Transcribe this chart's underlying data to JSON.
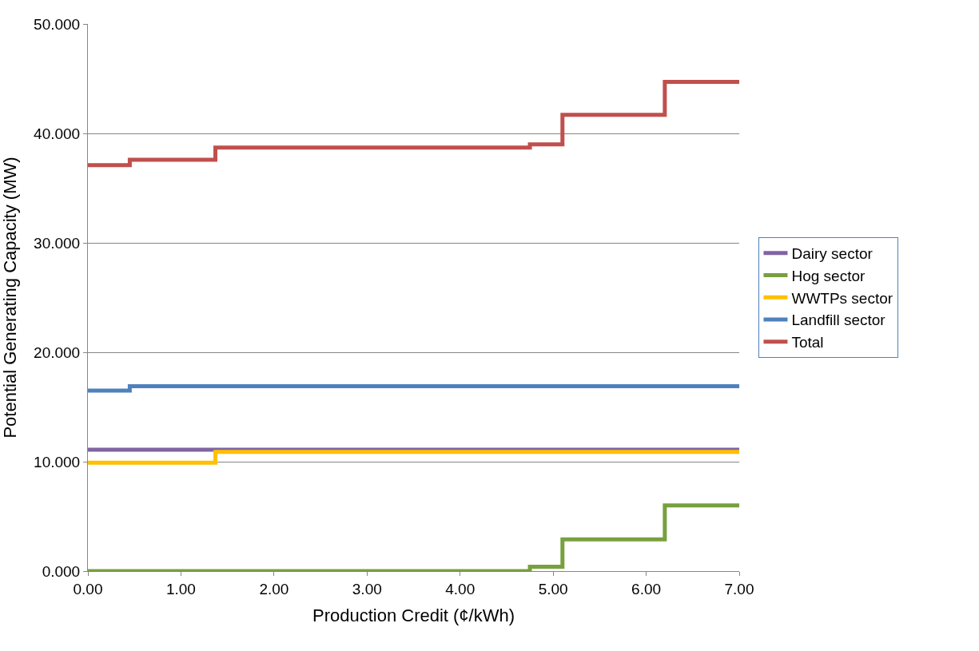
{
  "chart_data": {
    "type": "step",
    "xlabel": "Production Credit (¢/kWh)",
    "ylabel": "Potential Generating Capacity (MW)",
    "x": [
      0,
      0.45,
      1.37,
      4.75,
      5.1,
      6.2,
      7
    ],
    "series": [
      {
        "name": "Dairy sector",
        "color": "#8064a2",
        "values": [
          11.1,
          11.1,
          11.1,
          11.1,
          11.1,
          11.1,
          11.1
        ]
      },
      {
        "name": "Hog sector",
        "color": "#77a03f",
        "values": [
          0,
          0,
          0,
          0.4,
          2.9,
          6.0,
          6.0
        ]
      },
      {
        "name": "WWTPs sector",
        "color": "#ffc000",
        "values": [
          9.9,
          9.9,
          10.9,
          10.9,
          10.9,
          10.9,
          10.9
        ]
      },
      {
        "name": "Landfill sector",
        "color": "#4f81bd",
        "values": [
          16.5,
          16.9,
          16.9,
          16.9,
          16.9,
          16.9,
          16.9
        ]
      },
      {
        "name": "Total",
        "color": "#c0504d",
        "values": [
          37.1,
          37.6,
          38.7,
          39.0,
          41.7,
          44.7,
          44.7
        ]
      }
    ],
    "xlim": [
      0,
      7
    ],
    "xticks": [
      {
        "value": 0,
        "label": "0.00"
      },
      {
        "value": 1,
        "label": "1.00"
      },
      {
        "value": 2,
        "label": "2.00"
      },
      {
        "value": 3,
        "label": "3.00"
      },
      {
        "value": 4,
        "label": "4.00"
      },
      {
        "value": 5,
        "label": "5.00"
      },
      {
        "value": 6,
        "label": "6.00"
      },
      {
        "value": 7,
        "label": "7.00"
      }
    ],
    "ylim": [
      0,
      50
    ],
    "yticks": [
      {
        "value": 0,
        "label": "0.000"
      },
      {
        "value": 10,
        "label": "10.000"
      },
      {
        "value": 20,
        "label": "20.000"
      },
      {
        "value": 30,
        "label": "30.000"
      },
      {
        "value": 40,
        "label": "40.000"
      },
      {
        "value": 50,
        "label": "50.000"
      }
    ],
    "grid": "y",
    "legend": "right"
  }
}
